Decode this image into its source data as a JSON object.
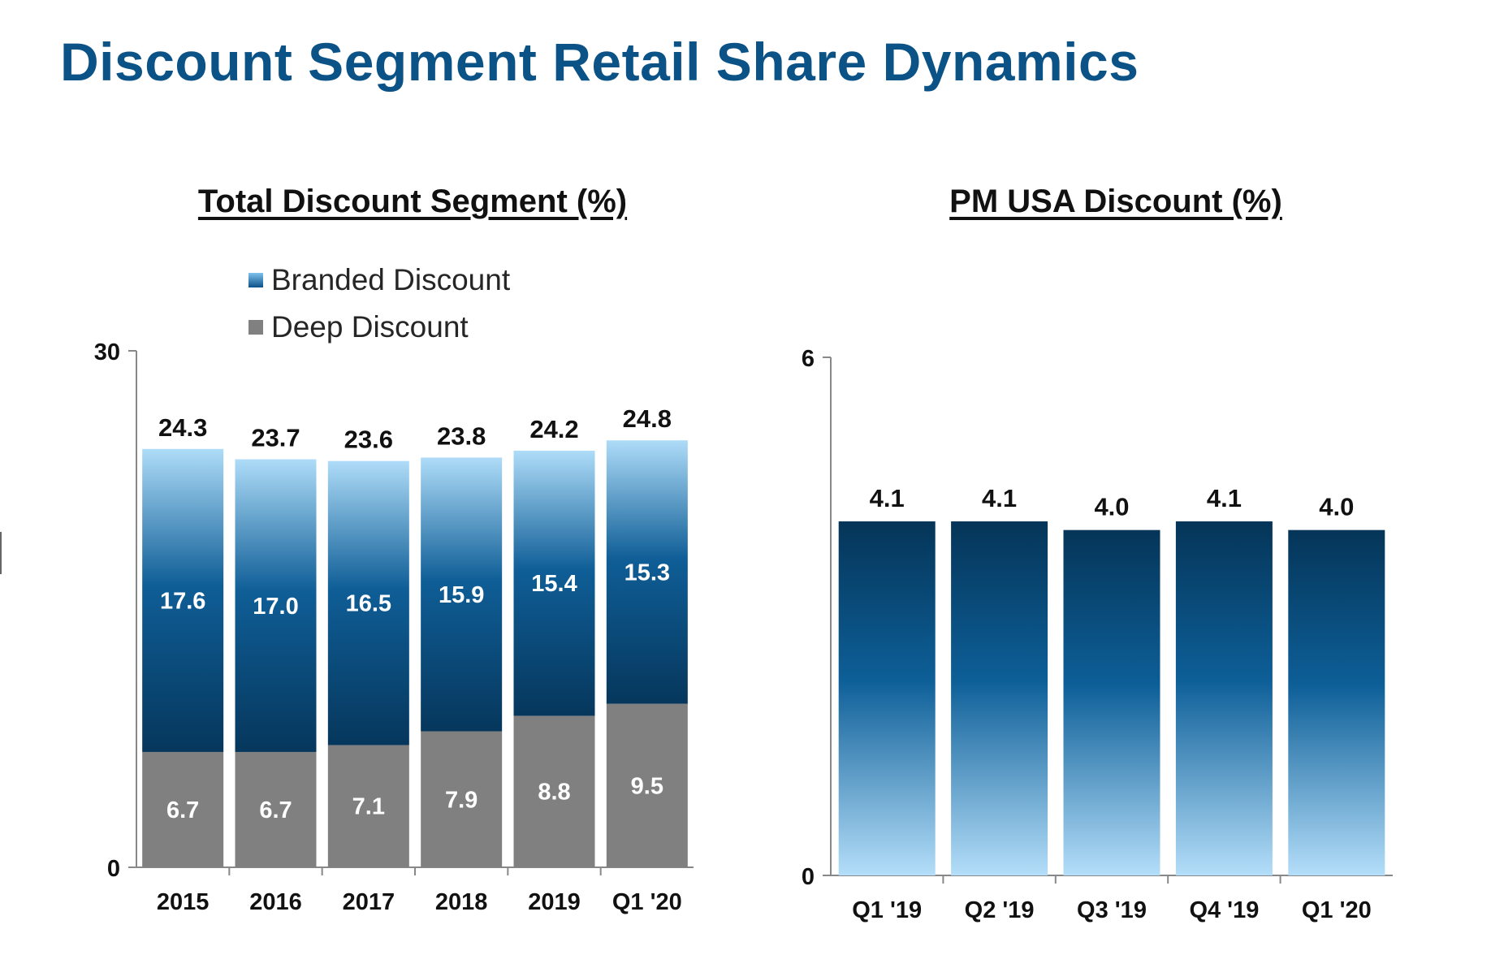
{
  "page": {
    "title": "Discount Segment Retail Share Dynamics"
  },
  "chart_data": [
    {
      "type": "bar",
      "stacked": true,
      "title": "Total Discount Segment (%)",
      "categories": [
        "2015",
        "2016",
        "2017",
        "2018",
        "2019",
        "Q1 '20"
      ],
      "series": [
        {
          "name": "Deep Discount",
          "values": [
            6.7,
            6.7,
            7.1,
            7.9,
            8.8,
            9.5
          ]
        },
        {
          "name": "Branded Discount",
          "values": [
            17.6,
            17.0,
            16.5,
            15.9,
            15.4,
            15.3
          ]
        }
      ],
      "totals": [
        24.3,
        23.7,
        23.6,
        23.8,
        24.2,
        24.8
      ],
      "total_labels": [
        "24.3",
        "23.7",
        "23.6",
        "23.8",
        "24.2",
        "24.8"
      ],
      "series_labels": [
        [
          "6.7",
          "6.7",
          "7.1",
          "7.9",
          "8.8",
          "9.5"
        ],
        [
          "17.6",
          "17.0",
          "16.5",
          "15.9",
          "15.4",
          "15.3"
        ]
      ],
      "ylim": [
        0,
        30
      ],
      "yticks": [
        "0",
        "30"
      ],
      "legend": "top-left",
      "grid": false,
      "colors": {
        "deep_discount": "#808080",
        "branded_dark": "#06375c",
        "branded_mid": "#0f5e97",
        "branded_light": "#a9d8f7"
      }
    },
    {
      "type": "bar",
      "title": "PM USA Discount (%)",
      "categories": [
        "Q1 '19",
        "Q2 '19",
        "Q3 '19",
        "Q4 '19",
        "Q1 '20"
      ],
      "values": [
        4.1,
        4.1,
        4.0,
        4.1,
        4.0
      ],
      "value_labels": [
        "4.1",
        "4.1",
        "4.0",
        "4.1",
        "4.0"
      ],
      "ylim": [
        0,
        6
      ],
      "yticks": [
        "0",
        "6"
      ],
      "grid": false,
      "colors": {
        "top": "#053558",
        "mid": "#0d5f98",
        "bottom": "#b4def9"
      }
    }
  ]
}
